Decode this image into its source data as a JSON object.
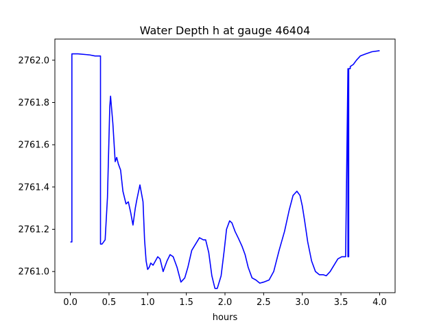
{
  "chart_data": {
    "type": "line",
    "title": "Water Depth h at gauge 46404",
    "xlabel": "hours",
    "ylabel": "",
    "xlim": [
      -0.2,
      4.2
    ],
    "ylim": [
      2760.9,
      2762.1
    ],
    "xticks": [
      0.0,
      0.5,
      1.0,
      1.5,
      2.0,
      2.5,
      3.0,
      3.5,
      4.0
    ],
    "xtick_labels": [
      "0.0",
      "0.5",
      "1.0",
      "1.5",
      "2.0",
      "2.5",
      "3.0",
      "3.5",
      "4.0"
    ],
    "yticks": [
      2761.0,
      2761.2,
      2761.4,
      2761.6,
      2761.8,
      2762.0
    ],
    "ytick_labels": [
      "2761.0",
      "2761.2",
      "2761.4",
      "2761.6",
      "2761.8",
      "2762.0"
    ],
    "grid": false,
    "series": [
      {
        "color": "#0000ff",
        "x": [
          0.0,
          0.02,
          0.02,
          0.1,
          0.25,
          0.32,
          0.39,
          0.39,
          0.41,
          0.45,
          0.48,
          0.51,
          0.52,
          0.55,
          0.58,
          0.6,
          0.62,
          0.65,
          0.68,
          0.72,
          0.75,
          0.78,
          0.81,
          0.84,
          0.86,
          0.9,
          0.94,
          0.96,
          0.98,
          1.0,
          1.02,
          1.04,
          1.07,
          1.1,
          1.13,
          1.16,
          1.2,
          1.25,
          1.29,
          1.33,
          1.38,
          1.43,
          1.48,
          1.52,
          1.57,
          1.62,
          1.67,
          1.72,
          1.75,
          1.79,
          1.83,
          1.87,
          1.9,
          1.95,
          1.99,
          2.02,
          2.06,
          2.09,
          2.13,
          2.17,
          2.22,
          2.26,
          2.3,
          2.35,
          2.4,
          2.45,
          2.5,
          2.57,
          2.63,
          2.7,
          2.77,
          2.83,
          2.88,
          2.93,
          2.97,
          3.0,
          3.03,
          3.07,
          3.12,
          3.17,
          3.22,
          3.27,
          3.31,
          3.36,
          3.41,
          3.46,
          3.51,
          3.56,
          3.59,
          3.59,
          3.6,
          3.6,
          3.62,
          3.62,
          3.66,
          3.7,
          3.75,
          3.82,
          3.9,
          4.0
        ],
        "y": [
          2761.14,
          2761.14,
          2762.03,
          2762.03,
          2762.025,
          2762.02,
          2762.02,
          2761.13,
          2761.13,
          2761.15,
          2761.35,
          2761.78,
          2761.83,
          2761.7,
          2761.52,
          2761.54,
          2761.51,
          2761.48,
          2761.38,
          2761.32,
          2761.33,
          2761.28,
          2761.22,
          2761.3,
          2761.34,
          2761.41,
          2761.33,
          2761.15,
          2761.05,
          2761.01,
          2761.02,
          2761.04,
          2761.03,
          2761.05,
          2761.07,
          2761.06,
          2761.0,
          2761.05,
          2761.08,
          2761.07,
          2761.02,
          2760.95,
          2760.97,
          2761.02,
          2761.1,
          2761.13,
          2761.16,
          2761.15,
          2761.15,
          2761.09,
          2760.98,
          2760.92,
          2760.92,
          2760.98,
          2761.1,
          2761.2,
          2761.24,
          2761.23,
          2761.19,
          2761.16,
          2761.12,
          2761.08,
          2761.02,
          2760.97,
          2760.96,
          2760.945,
          2760.95,
          2760.96,
          2761.0,
          2761.1,
          2761.19,
          2761.29,
          2761.36,
          2761.38,
          2761.36,
          2761.31,
          2761.24,
          2761.14,
          2761.05,
          2761.0,
          2760.985,
          2760.985,
          2760.98,
          2761.0,
          2761.03,
          2761.06,
          2761.07,
          2761.07,
          2761.96,
          2761.07,
          2761.07,
          2761.96,
          2761.96,
          2761.97,
          2761.98,
          2762.0,
          2762.02,
          2762.03,
          2762.04,
          2762.045
        ]
      }
    ]
  }
}
